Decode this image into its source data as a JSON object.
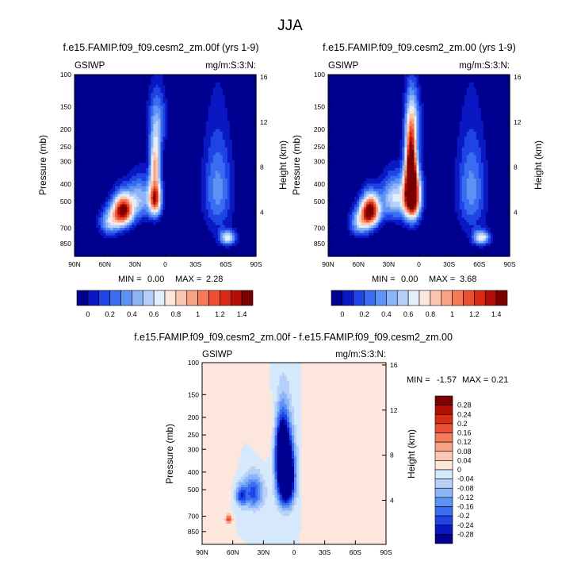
{
  "figure": {
    "title": "JJA"
  },
  "palette": {
    "levels": [
      "#000090",
      "#0a18c4",
      "#1e44e6",
      "#3a6cf2",
      "#5f92f5",
      "#8cb4f7",
      "#b6d0fa",
      "#e3eefc",
      "#fde6dc",
      "#fbc7b0",
      "#f8a184",
      "#f47a58",
      "#ec4f33",
      "#d82a14",
      "#b30e06",
      "#7b0000"
    ],
    "diff_levels": [
      "#000090",
      "#0a18c4",
      "#1e44e6",
      "#3a6cf2",
      "#5f92f5",
      "#8cb4f7",
      "#b6d0fa",
      "#d6e8fc",
      "#fde6dc",
      "#fbc7b0",
      "#f8a184",
      "#f47a58",
      "#ec4f33",
      "#d82a14",
      "#b30e06",
      "#7b0000"
    ]
  },
  "chart_data": [
    {
      "type": "heatmap",
      "title": "f.e15.FAMIP.f09_f09.cesm2_zm.00f (yrs 1-9)",
      "left_label": "GSIWP",
      "right_label": "mg/m:S:3:N:",
      "ylabel": "Pressure (mb)",
      "y2label": "Height (km)",
      "x_ticks": [
        "90N",
        "60N",
        "30N",
        "0",
        "30S",
        "60S",
        "90S"
      ],
      "y_ticks": [
        "100",
        "150",
        "200",
        "250",
        "300",
        "400",
        "500",
        "700",
        "850"
      ],
      "y2_ticks": [
        "16",
        "12",
        "8",
        "4"
      ],
      "stats": {
        "min_label": "MIN =",
        "min": "0.00",
        "max_label": "MAX =",
        "max": "2.28"
      },
      "colorbar_labels": [
        "0",
        "0.2",
        "0.4",
        "0.6",
        "0.8",
        "1",
        "1.2",
        "1.4"
      ],
      "features": [
        {
          "lat": 42,
          "p": 560,
          "amp": 1.55,
          "wlat": 10,
          "wp": 110
        },
        {
          "lat": 10,
          "p": 480,
          "amp": 1.4,
          "wlat": 6,
          "wp": 110
        },
        {
          "lat": 10,
          "p": 300,
          "amp": 0.9,
          "wlat": 5,
          "wp": 90
        },
        {
          "lat": 8,
          "p": 180,
          "amp": 0.45,
          "wlat": 9,
          "wp": 70
        },
        {
          "lat": 25,
          "p": 480,
          "amp": 0.55,
          "wlat": 12,
          "wp": 130
        },
        {
          "lat": -62,
          "p": 790,
          "amp": 0.75,
          "wlat": 8,
          "wp": 70
        },
        {
          "lat": -52,
          "p": 430,
          "amp": 0.45,
          "wlat": 14,
          "wp": 260
        },
        {
          "lat": 55,
          "p": 650,
          "amp": 0.6,
          "wlat": 10,
          "wp": 110
        }
      ]
    },
    {
      "type": "heatmap",
      "title": "f.e15.FAMIP.f09_f09.cesm2_zm.00 (yrs 1-9)",
      "left_label": "GSIWP",
      "right_label": "mg/m:S:3:N:",
      "ylabel": "Pressure (mb)",
      "y2label": "Height (km)",
      "x_ticks": [
        "90N",
        "60N",
        "30N",
        "0",
        "30S",
        "60S",
        "90S"
      ],
      "y_ticks": [
        "100",
        "150",
        "200",
        "250",
        "300",
        "400",
        "500",
        "700",
        "850"
      ],
      "y2_ticks": [
        "16",
        "12",
        "8",
        "4"
      ],
      "stats": {
        "min_label": "MIN =",
        "min": "0.00",
        "max_label": "MAX =",
        "max": "3.68"
      },
      "colorbar_labels": [
        "0",
        "0.2",
        "0.4",
        "0.6",
        "0.8",
        "1",
        "1.2",
        "1.4"
      ],
      "features": [
        {
          "lat": 48,
          "p": 560,
          "amp": 1.6,
          "wlat": 9,
          "wp": 110
        },
        {
          "lat": 7,
          "p": 460,
          "amp": 2.1,
          "wlat": 8,
          "wp": 150
        },
        {
          "lat": 8,
          "p": 290,
          "amp": 1.3,
          "wlat": 5,
          "wp": 120
        },
        {
          "lat": 6,
          "p": 180,
          "amp": 0.5,
          "wlat": 8,
          "wp": 70
        },
        {
          "lat": 25,
          "p": 480,
          "amp": 0.7,
          "wlat": 12,
          "wp": 130
        },
        {
          "lat": -62,
          "p": 790,
          "amp": 0.8,
          "wlat": 8,
          "wp": 70
        },
        {
          "lat": -52,
          "p": 430,
          "amp": 0.45,
          "wlat": 14,
          "wp": 260
        },
        {
          "lat": 58,
          "p": 650,
          "amp": 0.65,
          "wlat": 10,
          "wp": 110
        }
      ]
    },
    {
      "type": "heatmap",
      "title": "f.e15.FAMIP.f09_f09.cesm2_zm.00f - f.e15.FAMIP.f09_f09.cesm2_zm.00",
      "left_label": "GSIWP",
      "right_label": "mg/m:S:3:N:",
      "ylabel": "Pressure (mb)",
      "y2label": "Height (km)",
      "x_ticks": [
        "90N",
        "60N",
        "30N",
        "0",
        "30S",
        "60S",
        "90S"
      ],
      "y_ticks": [
        "100",
        "150",
        "200",
        "250",
        "300",
        "400",
        "500",
        "700",
        "850"
      ],
      "y2_ticks": [
        "16",
        "12",
        "8",
        "4"
      ],
      "stats": {
        "min_label": "MIN =",
        "min": "-1.57",
        "max_label": "MAX =",
        "max": "0.21"
      },
      "colorbar_labels": [
        "0.28",
        "0.24",
        "0.2",
        "0.16",
        "0.12",
        "0.08",
        "0.04",
        "0",
        "-0.04",
        "-0.08",
        "-0.12",
        "-0.16",
        "-0.2",
        "-0.24",
        "-0.28"
      ],
      "features": [
        {
          "lat": 8,
          "p": 420,
          "amp": -0.6,
          "wlat": 8,
          "wp": 170
        },
        {
          "lat": 12,
          "p": 300,
          "amp": -0.35,
          "wlat": 6,
          "wp": 110
        },
        {
          "lat": 40,
          "p": 520,
          "amp": -0.22,
          "wlat": 10,
          "wp": 110
        },
        {
          "lat": 52,
          "p": 540,
          "amp": -0.2,
          "wlat": 5,
          "wp": 70
        },
        {
          "lat": 64,
          "p": 730,
          "amp": 0.2,
          "wlat": 3,
          "wp": 40
        },
        {
          "lat": -20,
          "p": 420,
          "amp": 0.04,
          "wlat": 10,
          "wp": 200
        },
        {
          "lat": 70,
          "p": 300,
          "amp": 0.04,
          "wlat": 10,
          "wp": 200
        },
        {
          "lat": -55,
          "p": 700,
          "amp": 0.04,
          "wlat": 8,
          "wp": 150
        },
        {
          "lat": 28,
          "p": 250,
          "amp": 0.03,
          "wlat": 10,
          "wp": 80
        }
      ]
    }
  ]
}
